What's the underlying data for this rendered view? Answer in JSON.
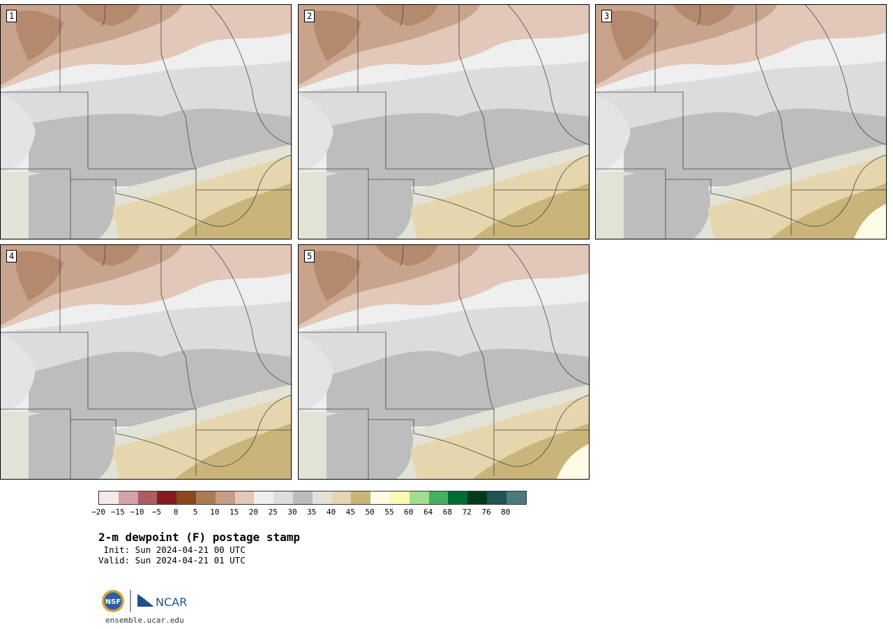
{
  "panels": [
    {
      "label": "1"
    },
    {
      "label": "2"
    },
    {
      "label": "3"
    },
    {
      "label": "4"
    },
    {
      "label": "5"
    }
  ],
  "colorbar": {
    "colors": [
      "#f5e9ea",
      "#d3a2a7",
      "#b05d62",
      "#8a1a22",
      "#8a4a18",
      "#ad7a55",
      "#c79d84",
      "#e3c8b8",
      "#efefef",
      "#dedede",
      "#bcbcbc",
      "#e3e2d7",
      "#e6d6ae",
      "#c9b578",
      "#fffce6",
      "#fafab0",
      "#a3dd8f",
      "#43b163",
      "#006d35",
      "#00391c",
      "#1f5454",
      "#4b7a7b"
    ],
    "tick_labels": [
      "−20",
      "−15",
      "−10",
      "−5",
      "0",
      "5",
      "10",
      "15",
      "20",
      "25",
      "30",
      "35",
      "40",
      "45",
      "50",
      "55",
      "60",
      "64",
      "68",
      "72",
      "76",
      "80"
    ]
  },
  "title": "2-m dewpoint (F) postage stamp",
  "init": " Init: Sun 2024-04-21 00 UTC",
  "valid": "Valid: Sun 2024-04-21 01 UTC",
  "logo": {
    "nsf": "NSF",
    "ncar": "NCAR"
  },
  "website": "ensemble.ucar.edu"
}
